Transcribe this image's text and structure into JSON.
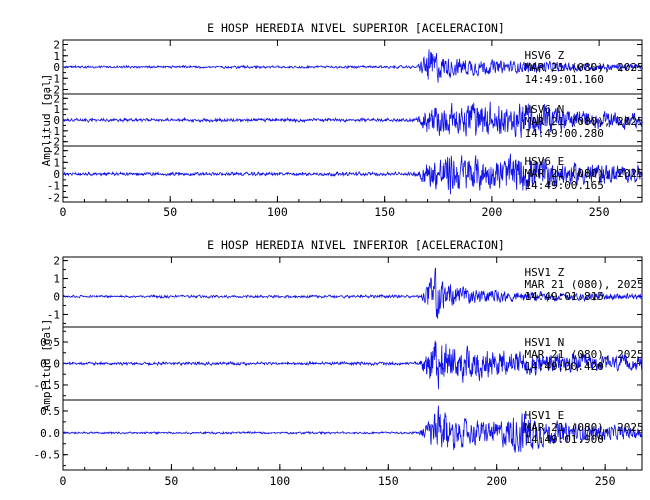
{
  "chart_data": [
    {
      "type": "line",
      "title": "E HOSP HEREDIA NIVEL SUPERIOR [ACELERACION]",
      "ylabel": "Amplitud [gal]",
      "xlabel": "",
      "xlim": [
        0,
        270
      ],
      "x_ticks": [
        0,
        50,
        100,
        150,
        200,
        250
      ],
      "line_color": "#1010e8",
      "series": [
        {
          "name": "HSV6 Z",
          "station": "HSV6",
          "component": "Z",
          "date": "MAR 21 (080), 2025",
          "time": "14:49:01.160",
          "ylim": [
            -2.4,
            2.4
          ],
          "ticks": [
            -2,
            -1,
            0,
            1,
            2
          ],
          "tick_labels": [
            "-2",
            "-1",
            "0",
            "1",
            "2"
          ],
          "onset": 171,
          "peak": 2.2,
          "noise": 0.08,
          "seed": 3,
          "envelope": [
            [
              0,
              0.04
            ],
            [
              165,
              0.05
            ],
            [
              170,
              0.9
            ],
            [
              172,
              1.0
            ],
            [
              178,
              0.55
            ],
            [
              190,
              0.45
            ],
            [
              205,
              0.32
            ],
            [
              220,
              0.3
            ],
            [
              240,
              0.22
            ],
            [
              270,
              0.15
            ]
          ]
        },
        {
          "name": "HSV6 N",
          "station": "HSV6",
          "component": "N",
          "date": "MAR 21 (080), 2025",
          "time": "14:49:00.280",
          "ylim": [
            -2.4,
            2.4
          ],
          "ticks": [
            -2,
            -1,
            0,
            1,
            2
          ],
          "tick_labels": [
            "-2",
            "-1",
            "0",
            "1",
            "2"
          ],
          "onset": 170,
          "peak": 2.3,
          "noise": 0.12,
          "seed": 11,
          "envelope": [
            [
              0,
              0.05
            ],
            [
              164,
              0.06
            ],
            [
              170,
              0.7
            ],
            [
              175,
              0.9
            ],
            [
              185,
              0.75
            ],
            [
              195,
              1.0
            ],
            [
              205,
              0.8
            ],
            [
              215,
              0.9
            ],
            [
              230,
              0.6
            ],
            [
              250,
              0.45
            ],
            [
              270,
              0.35
            ]
          ]
        },
        {
          "name": "HSV6 E",
          "station": "HSV6",
          "component": "E",
          "date": "MAR 21 (080), 2025",
          "time": "14:49:00.165",
          "ylim": [
            -2.4,
            2.4
          ],
          "ticks": [
            -2,
            -1,
            0,
            1,
            2
          ],
          "tick_labels": [
            "-2",
            "-1",
            "0",
            "1",
            "2"
          ],
          "onset": 170,
          "peak": 2.3,
          "noise": 0.12,
          "seed": 23,
          "envelope": [
            [
              0,
              0.05
            ],
            [
              164,
              0.06
            ],
            [
              170,
              0.6
            ],
            [
              180,
              1.0
            ],
            [
              190,
              0.85
            ],
            [
              200,
              0.7
            ],
            [
              210,
              0.9
            ],
            [
              220,
              0.8
            ],
            [
              235,
              0.55
            ],
            [
              255,
              0.45
            ],
            [
              270,
              0.35
            ]
          ]
        }
      ]
    },
    {
      "type": "line",
      "title": "E HOSP HEREDIA NIVEL INFERIOR [ACELERACION]",
      "ylabel": "Amplitud [gal]",
      "xlabel": "",
      "xlim": [
        0,
        267
      ],
      "x_ticks": [
        0,
        50,
        100,
        150,
        200,
        250
      ],
      "line_color": "#1010e8",
      "series": [
        {
          "name": "HSV1 Z",
          "station": "HSV1",
          "component": "Z",
          "date": "MAR 21 (080), 2025",
          "time": "14:49:01.815",
          "ylim": [
            -1.7,
            2.2
          ],
          "ticks": [
            -1,
            0,
            1,
            2
          ],
          "tick_labels": [
            "-1",
            "0",
            "1",
            "2"
          ],
          "onset": 170,
          "peak": 2.0,
          "noise": 0.05,
          "seed": 5,
          "envelope": [
            [
              0,
              0.03
            ],
            [
              165,
              0.04
            ],
            [
              169,
              0.6
            ],
            [
              171,
              1.0
            ],
            [
              176,
              0.45
            ],
            [
              190,
              0.25
            ],
            [
              210,
              0.18
            ],
            [
              240,
              0.12
            ],
            [
              267,
              0.1
            ]
          ]
        },
        {
          "name": "HSV1 N",
          "station": "HSV1",
          "component": "N",
          "date": "MAR 21 (080), 2025",
          "time": "14:49:00.420",
          "ylim": [
            -0.85,
            0.85
          ],
          "ticks": [
            -0.5,
            0.0,
            0.5
          ],
          "tick_labels": [
            "-0.5",
            "0.0",
            "0.5"
          ],
          "onset": 169,
          "peak": 0.78,
          "noise": 0.03,
          "seed": 17,
          "envelope": [
            [
              0,
              0.03
            ],
            [
              164,
              0.04
            ],
            [
              169,
              0.8
            ],
            [
              172,
              1.0
            ],
            [
              180,
              0.7
            ],
            [
              195,
              0.55
            ],
            [
              210,
              0.45
            ],
            [
              230,
              0.4
            ],
            [
              250,
              0.3
            ],
            [
              267,
              0.25
            ]
          ]
        },
        {
          "name": "HSV1 E",
          "station": "HSV1",
          "component": "E",
          "date": "MAR 21 (080), 2025",
          "time": "14:49:01.900",
          "ylim": [
            -0.85,
            0.75
          ],
          "ticks": [
            -0.5,
            0.0,
            0.5
          ],
          "tick_labels": [
            "-0.5",
            "0.0",
            "0.5"
          ],
          "onset": 169,
          "peak": 0.72,
          "noise": 0.02,
          "seed": 29,
          "envelope": [
            [
              0,
              0.02
            ],
            [
              164,
              0.03
            ],
            [
              169,
              0.55
            ],
            [
              173,
              1.0
            ],
            [
              182,
              0.55
            ],
            [
              200,
              0.45
            ],
            [
              212,
              0.95
            ],
            [
              222,
              0.5
            ],
            [
              240,
              0.35
            ],
            [
              267,
              0.25
            ]
          ]
        }
      ]
    }
  ]
}
